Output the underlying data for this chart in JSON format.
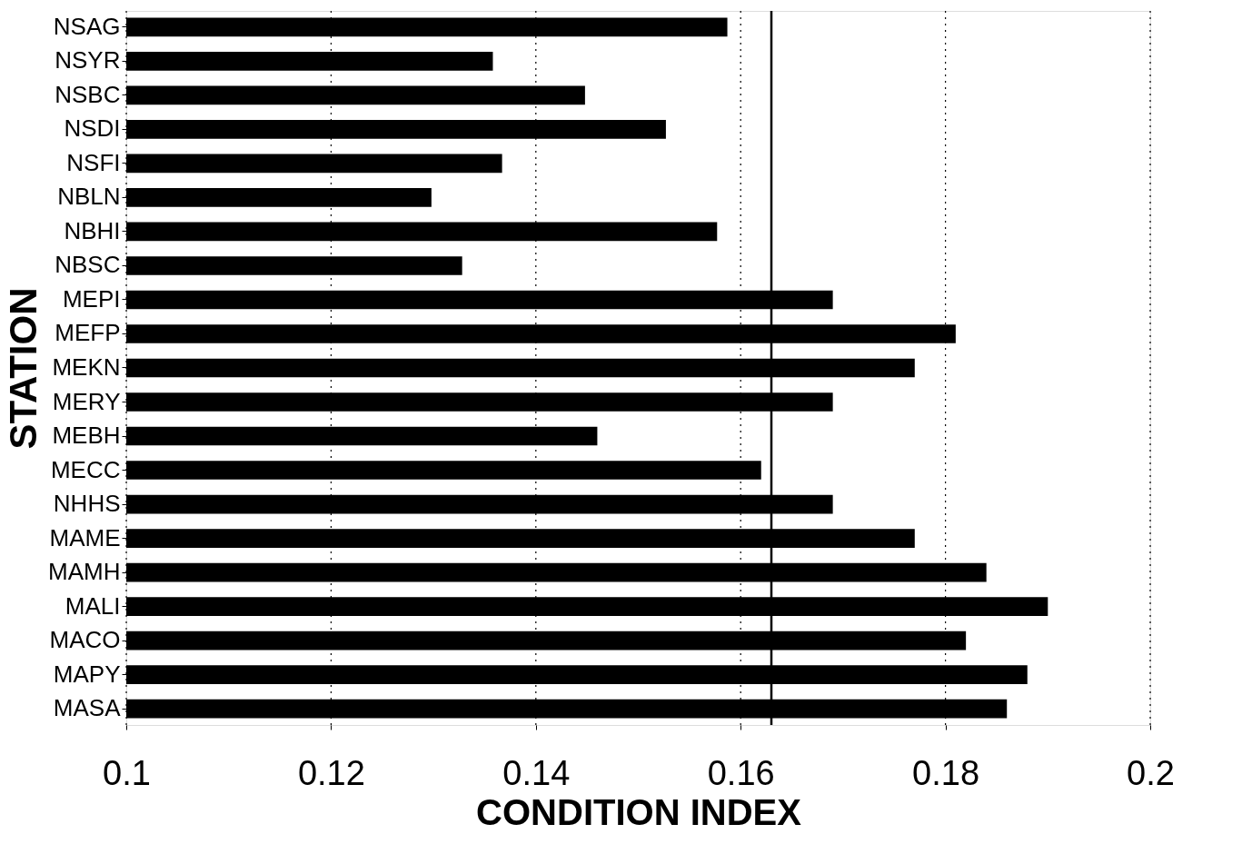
{
  "chart_data": {
    "type": "bar",
    "orientation": "horizontal",
    "xlabel": "CONDITION INDEX",
    "ylabel": "STATION",
    "categories": [
      "NSAG",
      "NSYR",
      "NSBC",
      "NSDI",
      "NSFI",
      "NBLN",
      "NBHI",
      "NBSC",
      "MEPI",
      "MEFP",
      "MEKN",
      "MERY",
      "MEBH",
      "MECC",
      "NHHS",
      "MAME",
      "MAMH",
      "MALI",
      "MACO",
      "MAPY",
      "MASA"
    ],
    "values": [
      0.1587,
      0.1358,
      0.1448,
      0.1527,
      0.1367,
      0.1298,
      0.1577,
      0.1328,
      0.169,
      0.181,
      0.177,
      0.169,
      0.146,
      0.162,
      0.169,
      0.177,
      0.184,
      0.19,
      0.182,
      0.188,
      0.186
    ],
    "color": "#000000",
    "xlim": [
      0.1,
      0.2
    ],
    "xticks": [
      0.1,
      0.12,
      0.14,
      0.16,
      0.18,
      0.2
    ],
    "grid": "x",
    "ref_lines": [
      {
        "axis": "x",
        "value": 0.163,
        "color": "#000000",
        "line_style": "solid"
      }
    ]
  }
}
